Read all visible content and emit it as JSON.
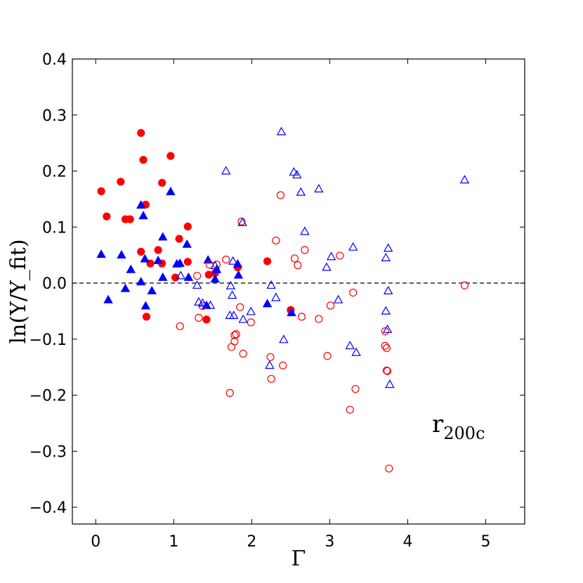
{
  "chart_data": {
    "type": "scatter",
    "xlabel": "Γ",
    "ylabel": "ln(Y/Y_fit)",
    "xlim": [
      -0.3,
      5.5
    ],
    "ylim": [
      -0.43,
      0.4
    ],
    "xticks": [
      "0",
      "1",
      "2",
      "3",
      "4",
      "5"
    ],
    "yticks": [
      "−0.4",
      "−0.3",
      "−0.2",
      "−0.1",
      "0.0",
      "0.1",
      "0.2",
      "0.3",
      "0.4"
    ],
    "reference_line": {
      "y": 0.0,
      "style": "dashed"
    },
    "grid": false,
    "annotation": {
      "text": "r",
      "subscript": "200c"
    },
    "series": [
      {
        "marker": "circle",
        "filled": true,
        "color": "#ff0000",
        "points": [
          [
            0.07,
            0.164
          ],
          [
            0.14,
            0.119
          ],
          [
            0.32,
            0.181
          ],
          [
            0.38,
            0.114
          ],
          [
            0.44,
            0.114
          ],
          [
            0.58,
            0.268
          ],
          [
            0.61,
            0.22
          ],
          [
            0.64,
            0.14
          ],
          [
            0.58,
            0.056
          ],
          [
            0.7,
            0.035
          ],
          [
            0.8,
            0.059
          ],
          [
            0.85,
            0.035
          ],
          [
            0.85,
            0.179
          ],
          [
            0.96,
            0.227
          ],
          [
            1.07,
            0.079
          ],
          [
            1.18,
            0.101
          ],
          [
            1.18,
            0.038
          ],
          [
            1.02,
            0.01
          ],
          [
            0.65,
            -0.06
          ],
          [
            1.45,
            0.015
          ],
          [
            1.53,
            0.018
          ],
          [
            1.42,
            -0.065
          ],
          [
            1.82,
            0.028
          ],
          [
            2.2,
            0.039
          ],
          [
            2.5,
            -0.048
          ]
        ]
      },
      {
        "marker": "triangle",
        "filled": true,
        "color": "#0000ff",
        "points": [
          [
            0.07,
            0.051
          ],
          [
            0.16,
            -0.03
          ],
          [
            0.33,
            0.05
          ],
          [
            0.38,
            -0.01
          ],
          [
            0.45,
            0.024
          ],
          [
            0.58,
            0.139
          ],
          [
            0.61,
            0.12
          ],
          [
            0.63,
            0.043
          ],
          [
            0.58,
            0.002
          ],
          [
            0.64,
            -0.041
          ],
          [
            0.72,
            -0.014
          ],
          [
            0.8,
            0.04
          ],
          [
            0.86,
            0.082
          ],
          [
            0.86,
            0.01
          ],
          [
            0.96,
            0.163
          ],
          [
            1.04,
            0.034
          ],
          [
            1.08,
            0.035
          ],
          [
            1.17,
            0.069
          ],
          [
            1.19,
            0.01
          ],
          [
            1.44,
            0.041
          ],
          [
            1.42,
            -0.04
          ],
          [
            1.53,
            0.007
          ],
          [
            1.55,
            0.024
          ],
          [
            1.83,
            0.014
          ],
          [
            1.82,
            0.034
          ],
          [
            2.2,
            -0.037
          ],
          [
            2.51,
            -0.053
          ]
        ]
      },
      {
        "marker": "circle",
        "filled": false,
        "color": "#ff0000",
        "points": [
          [
            1.08,
            -0.077
          ],
          [
            1.3,
            0.013
          ],
          [
            1.32,
            -0.062
          ],
          [
            1.37,
            -0.041
          ],
          [
            1.46,
            0.033
          ],
          [
            1.55,
            0.033
          ],
          [
            1.67,
            0.042
          ],
          [
            1.74,
            -0.114
          ],
          [
            1.72,
            -0.196
          ],
          [
            1.78,
            -0.093
          ],
          [
            1.78,
            -0.104
          ],
          [
            1.8,
            -0.091
          ],
          [
            1.85,
            -0.043
          ],
          [
            1.87,
            0.11
          ],
          [
            1.89,
            -0.126
          ],
          [
            1.99,
            -0.07
          ],
          [
            2.24,
            -0.132
          ],
          [
            2.25,
            -0.171
          ],
          [
            2.31,
            0.076
          ],
          [
            2.37,
            0.157
          ],
          [
            2.4,
            -0.147
          ],
          [
            2.55,
            0.044
          ],
          [
            2.59,
            0.032
          ],
          [
            2.64,
            -0.06
          ],
          [
            2.68,
            0.059
          ],
          [
            2.86,
            -0.064
          ],
          [
            2.97,
            -0.13
          ],
          [
            3.01,
            -0.04
          ],
          [
            3.13,
            0.049
          ],
          [
            3.26,
            -0.226
          ],
          [
            3.3,
            -0.017
          ],
          [
            3.33,
            -0.189
          ],
          [
            3.71,
            -0.086
          ],
          [
            3.71,
            -0.112
          ],
          [
            3.73,
            -0.116
          ],
          [
            3.73,
            -0.156
          ],
          [
            3.74,
            -0.157
          ],
          [
            3.76,
            -0.331
          ],
          [
            4.73,
            -0.004
          ]
        ]
      },
      {
        "marker": "triangle",
        "filled": false,
        "color": "#0000ff",
        "points": [
          [
            1.09,
            0.013
          ],
          [
            1.3,
            -0.004
          ],
          [
            1.32,
            -0.034
          ],
          [
            1.37,
            -0.036
          ],
          [
            1.47,
            -0.04
          ],
          [
            1.53,
            0.031
          ],
          [
            1.67,
            0.2
          ],
          [
            1.72,
            -0.058
          ],
          [
            1.73,
            -0.005
          ],
          [
            1.75,
            -0.022
          ],
          [
            1.76,
            0.039
          ],
          [
            1.77,
            -0.058
          ],
          [
            1.88,
            0.108
          ],
          [
            1.89,
            -0.065
          ],
          [
            1.99,
            -0.051
          ],
          [
            2.23,
            -0.147
          ],
          [
            2.25,
            -0.004
          ],
          [
            2.31,
            -0.026
          ],
          [
            2.38,
            0.27
          ],
          [
            2.41,
            -0.101
          ],
          [
            2.54,
            0.198
          ],
          [
            2.58,
            0.193
          ],
          [
            2.63,
            0.162
          ],
          [
            2.68,
            0.092
          ],
          [
            2.86,
            0.168
          ],
          [
            2.96,
            0.028
          ],
          [
            3.02,
            0.047
          ],
          [
            3.11,
            -0.03
          ],
          [
            3.26,
            -0.112
          ],
          [
            3.3,
            0.064
          ],
          [
            3.34,
            -0.124
          ],
          [
            3.72,
            0.045
          ],
          [
            3.72,
            -0.05
          ],
          [
            3.74,
            -0.083
          ],
          [
            3.75,
            -0.014
          ],
          [
            3.75,
            0.062
          ],
          [
            3.77,
            -0.181
          ],
          [
            4.73,
            0.184
          ]
        ]
      }
    ]
  }
}
